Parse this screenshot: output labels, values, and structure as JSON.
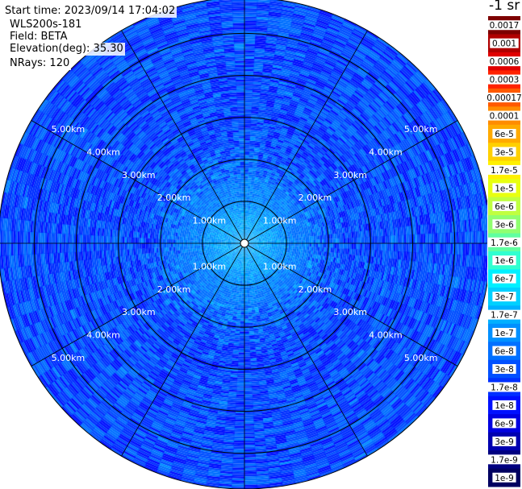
{
  "info": {
    "start_time": "Start time: 2023/09/14 17:04:02",
    "instrument": "WLS200s-181",
    "field": "Field: BETA",
    "elevation": "Elevation(deg): 35.30",
    "nrays": "NRays: 120"
  },
  "colorbar": {
    "unit_label": "-1 sr",
    "tick_labels": [
      "0.0017",
      "0.001",
      "0.0006",
      "0.0003",
      "0.00017",
      "0.0001",
      "6e-5",
      "3e-5",
      "1.7e-5",
      "1e-5",
      "6e-6",
      "3e-6",
      "1.7e-6",
      "1e-6",
      "6e-7",
      "3e-7",
      "1.7e-7",
      "1e-7",
      "6e-8",
      "3e-8",
      "1.7e-8",
      "1e-8",
      "6e-9",
      "3e-9",
      "1.7e-9",
      "1e-9"
    ],
    "colors": [
      "#7d0000",
      "#b00000",
      "#e00000",
      "#ff2200",
      "#ff5a00",
      "#ff8c00",
      "#ffaa00",
      "#ffd000",
      "#fff000",
      "#e8ff10",
      "#c0ff40",
      "#90ff70",
      "#60ffa0",
      "#30ffd0",
      "#00f0ff",
      "#00d0ff",
      "#00b0ff",
      "#0090ff",
      "#0070ff",
      "#0050ff",
      "#0030ff",
      "#0010ff",
      "#0000e0",
      "#0000b0",
      "#000080",
      "#000060"
    ]
  },
  "chart_data": {
    "type": "heatmap",
    "projection": "polar PPI",
    "range_unit": "km",
    "range_rings_km": [
      1,
      2,
      3,
      4,
      5
    ],
    "ring_labels": [
      "1.00km",
      "2.00km",
      "3.00km",
      "4.00km",
      "5.00km"
    ],
    "max_range_km": 5.85,
    "azimuth_spokes_deg": [
      0,
      30,
      60,
      90,
      120,
      150,
      180,
      210,
      240,
      270,
      300,
      330
    ],
    "n_rays": 120,
    "beta_profile": [
      {
        "range_km": 0.0,
        "beta": 1.7e-07
      },
      {
        "range_km": 0.5,
        "beta": 1.7e-07
      },
      {
        "range_km": 1.0,
        "beta": 1e-07
      },
      {
        "range_km": 1.6,
        "beta": 6e-08
      },
      {
        "range_km": 2.5,
        "beta": 3e-08
      },
      {
        "range_km": 5.85,
        "beta": 3e-08
      }
    ]
  }
}
